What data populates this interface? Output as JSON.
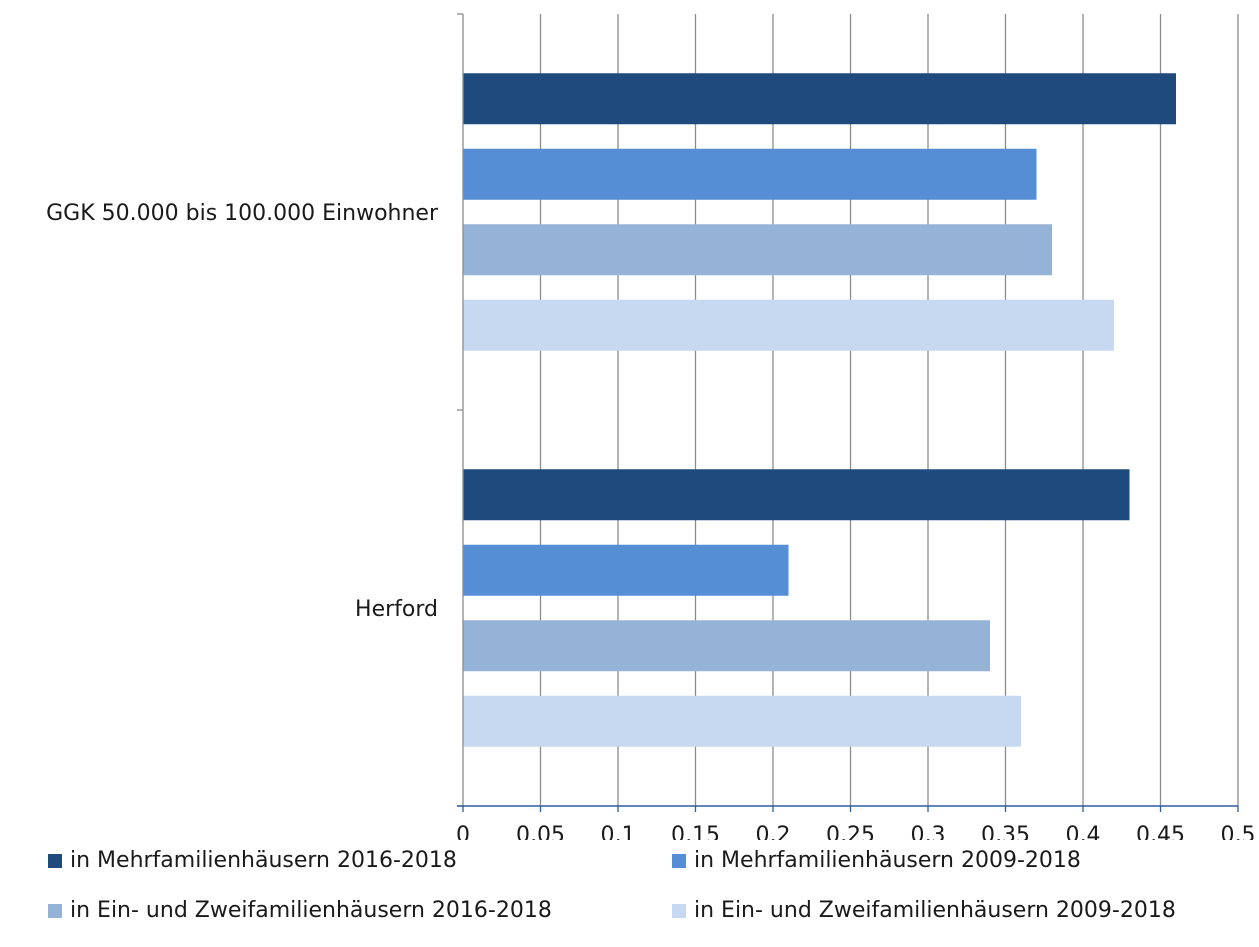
{
  "chart_data": {
    "type": "bar",
    "orientation": "horizontal",
    "categories": [
      "GGK 50.000 bis 100.000 Einwohner",
      "Herford"
    ],
    "series": [
      {
        "name": "in Mehrfamilienhäusern 2016-2018",
        "color": "#1f4a7c",
        "values": [
          0.46,
          0.43
        ]
      },
      {
        "name": "in Mehrfamilienhäusern 2009-2018",
        "color": "#558ed5",
        "values": [
          0.37,
          0.21
        ]
      },
      {
        "name": "in Ein- und Zweifamilienhäusern 2016-2018",
        "color": "#95b3d7",
        "values": [
          0.38,
          0.34
        ]
      },
      {
        "name": "in Ein- und Zweifamilienhäusern 2009-2018",
        "color": "#c6d9f1",
        "values": [
          0.42,
          0.36
        ]
      }
    ],
    "xlim": [
      0,
      0.5
    ],
    "x_ticks": [
      "0",
      "0,05",
      "0,1",
      "0,15",
      "0,2",
      "0,25",
      "0,3",
      "0,35",
      "0,4",
      "0,45",
      "0,5"
    ],
    "grid": true,
    "legend_position": "bottom",
    "title": "",
    "xlabel": "",
    "ylabel": ""
  }
}
